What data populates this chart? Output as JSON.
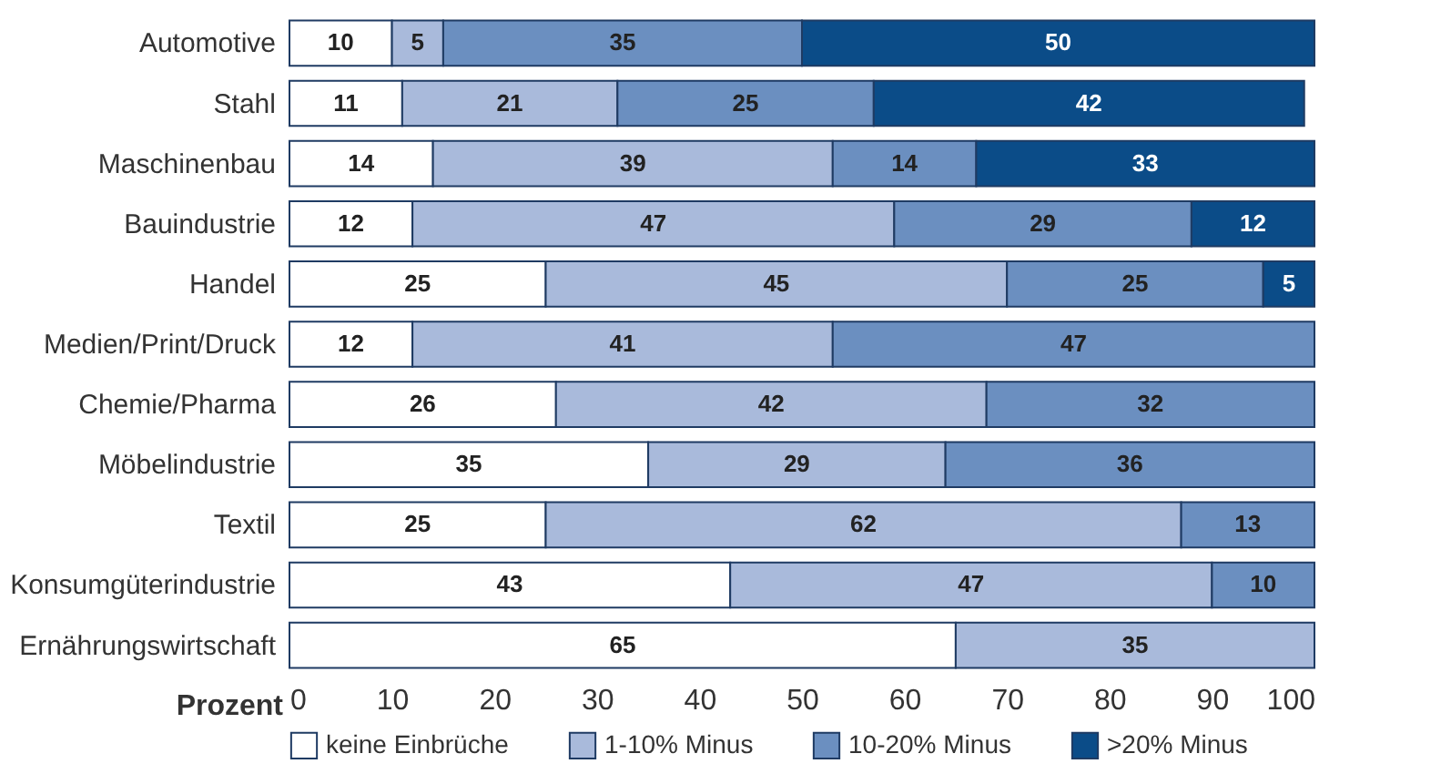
{
  "chart_data": {
    "type": "bar",
    "orientation": "horizontal",
    "stacked": true,
    "xlabel": "Prozent",
    "categories": [
      "Automotive",
      "Stahl",
      "Maschinenbau",
      "Bauindustrie",
      "Handel",
      "Medien/Print/Druck",
      "Chemie/Pharma",
      "Möbelindustrie",
      "Textil",
      "Konsumgüterindustrie",
      "Ernährungswirtschaft"
    ],
    "series": [
      {
        "name": "keine Einbrüche",
        "color": "#ffffff",
        "values": [
          10,
          11,
          14,
          12,
          25,
          12,
          26,
          35,
          25,
          43,
          65
        ]
      },
      {
        "name": "1-10% Minus",
        "color": "#a9badb",
        "values": [
          5,
          21,
          39,
          47,
          45,
          41,
          42,
          29,
          62,
          47,
          35
        ]
      },
      {
        "name": "10-20% Minus",
        "color": "#6b8fc0",
        "values": [
          35,
          25,
          14,
          29,
          25,
          47,
          32,
          36,
          13,
          10,
          null
        ]
      },
      {
        "name": ">20% Minus",
        "color": "#0b4c88",
        "values": [
          50,
          42,
          33,
          12,
          5,
          null,
          null,
          null,
          null,
          null,
          null
        ]
      }
    ],
    "xlim": [
      0,
      100
    ],
    "xticks": [
      0,
      10,
      20,
      30,
      40,
      50,
      60,
      70,
      80,
      90,
      100
    ],
    "data_labels": true,
    "legend": "bottom",
    "grid": false
  }
}
